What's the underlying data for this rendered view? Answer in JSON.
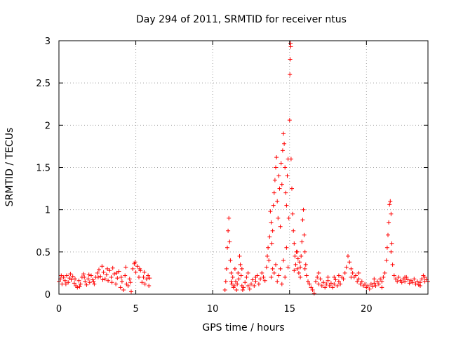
{
  "chart_data": {
    "type": "scatter",
    "title": "Day 294 of 2011, SRMTID for receiver ntus",
    "xlabel": "GPS time / hours",
    "ylabel": "SRMTID / TECUs",
    "xlim": [
      0,
      24
    ],
    "ylim": [
      0,
      3
    ],
    "xticks": [
      0,
      5,
      10,
      15,
      20
    ],
    "xtick_labels": [
      "0",
      "5",
      "10",
      "15",
      "20"
    ],
    "yticks": [
      0,
      0.5,
      1,
      1.5,
      2,
      2.5,
      3
    ],
    "ytick_labels": [
      "0",
      "0.5",
      "1",
      "1.5",
      "2",
      "2.5",
      "3"
    ],
    "grid": true,
    "marker": "+",
    "series": [
      {
        "name": "SRMTID",
        "color": "#ff0000",
        "points": [
          [
            0.0,
            0.15
          ],
          [
            0.1,
            0.18
          ],
          [
            0.2,
            0.12
          ],
          [
            0.3,
            0.2
          ],
          [
            0.4,
            0.16
          ],
          [
            0.5,
            0.22
          ],
          [
            0.6,
            0.14
          ],
          [
            0.7,
            0.19
          ],
          [
            0.8,
            0.17
          ],
          [
            0.9,
            0.21
          ],
          [
            1.0,
            0.13
          ],
          [
            1.1,
            0.1
          ],
          [
            1.2,
            0.08
          ],
          [
            1.3,
            0.16
          ],
          [
            1.4,
            0.12
          ],
          [
            1.5,
            0.2
          ],
          [
            1.6,
            0.24
          ],
          [
            1.7,
            0.15
          ],
          [
            1.8,
            0.11
          ],
          [
            1.9,
            0.18
          ],
          [
            2.0,
            0.14
          ],
          [
            2.1,
            0.22
          ],
          [
            2.2,
            0.17
          ],
          [
            2.3,
            0.12
          ],
          [
            2.4,
            0.2
          ],
          [
            2.5,
            0.25
          ],
          [
            2.6,
            0.29
          ],
          [
            2.7,
            0.21
          ],
          [
            2.8,
            0.33
          ],
          [
            2.9,
            0.26
          ],
          [
            3.0,
            0.18
          ],
          [
            3.1,
            0.23
          ],
          [
            3.2,
            0.16
          ],
          [
            3.3,
            0.28
          ],
          [
            3.4,
            0.2
          ],
          [
            3.5,
            0.31
          ],
          [
            3.6,
            0.24
          ],
          [
            3.7,
            0.12
          ],
          [
            3.8,
            0.19
          ],
          [
            3.9,
            0.27
          ],
          [
            4.0,
            0.08
          ],
          [
            4.1,
            0.15
          ],
          [
            4.2,
            0.05
          ],
          [
            4.3,
            0.22
          ],
          [
            4.4,
            0.12
          ],
          [
            4.5,
            0.1
          ],
          [
            4.6,
            0.18
          ],
          [
            4.7,
            0.03
          ],
          [
            4.8,
            0.3
          ],
          [
            4.9,
            0.36
          ],
          [
            5.0,
            0.26
          ],
          [
            5.1,
            0.33
          ],
          [
            5.2,
            0.2
          ],
          [
            5.3,
            0.28
          ],
          [
            5.4,
            0.14
          ],
          [
            5.5,
            0.2
          ],
          [
            5.6,
            0.12
          ],
          [
            5.7,
            0.18
          ],
          [
            5.8,
            0.22
          ],
          [
            5.9,
            0.19
          ],
          [
            0.15,
            0.22
          ],
          [
            0.45,
            0.12
          ],
          [
            0.75,
            0.24
          ],
          [
            1.05,
            0.18
          ],
          [
            1.35,
            0.09
          ],
          [
            1.65,
            0.2
          ],
          [
            1.95,
            0.23
          ],
          [
            2.25,
            0.15
          ],
          [
            2.55,
            0.2
          ],
          [
            2.85,
            0.17
          ],
          [
            3.15,
            0.3
          ],
          [
            3.45,
            0.14
          ],
          [
            3.75,
            0.25
          ],
          [
            4.05,
            0.2
          ],
          [
            4.35,
            0.32
          ],
          [
            4.65,
            0.14
          ],
          [
            4.95,
            0.38
          ],
          [
            5.25,
            0.3
          ],
          [
            5.55,
            0.26
          ],
          [
            5.85,
            0.1
          ],
          [
            10.8,
            0.05
          ],
          [
            10.85,
            0.15
          ],
          [
            10.9,
            0.3
          ],
          [
            10.95,
            0.55
          ],
          [
            11.0,
            0.75
          ],
          [
            11.05,
            0.9
          ],
          [
            11.1,
            0.62
          ],
          [
            11.15,
            0.4
          ],
          [
            11.2,
            0.25
          ],
          [
            11.25,
            0.12
          ],
          [
            11.3,
            0.2
          ],
          [
            11.35,
            0.08
          ],
          [
            11.4,
            0.1
          ],
          [
            11.45,
            0.3
          ],
          [
            11.5,
            0.15
          ],
          [
            11.55,
            0.05
          ],
          [
            11.6,
            0.12
          ],
          [
            11.65,
            0.25
          ],
          [
            11.7,
            0.18
          ],
          [
            11.75,
            0.45
          ],
          [
            11.8,
            0.35
          ],
          [
            11.85,
            0.22
          ],
          [
            11.9,
            0.1
          ],
          [
            11.95,
            0.05
          ],
          [
            12.0,
            0.08
          ],
          [
            12.1,
            0.14
          ],
          [
            12.2,
            0.2
          ],
          [
            12.3,
            0.1
          ],
          [
            12.4,
            0.06
          ],
          [
            12.5,
            0.12
          ],
          [
            12.6,
            0.17
          ],
          [
            12.7,
            0.1
          ],
          [
            12.8,
            0.15
          ],
          [
            12.9,
            0.22
          ],
          [
            13.0,
            0.12
          ],
          [
            13.1,
            0.18
          ],
          [
            13.2,
            0.25
          ],
          [
            13.3,
            0.2
          ],
          [
            13.4,
            0.16
          ],
          [
            13.5,
            0.32
          ],
          [
            13.55,
            0.45
          ],
          [
            13.6,
            0.55
          ],
          [
            13.65,
            0.4
          ],
          [
            13.7,
            0.68
          ],
          [
            13.75,
            0.98
          ],
          [
            13.8,
            0.85
          ],
          [
            13.85,
            0.6
          ],
          [
            13.9,
            0.75
          ],
          [
            13.95,
            1.05
          ],
          [
            14.0,
            1.2
          ],
          [
            14.05,
            1.35
          ],
          [
            14.1,
            1.5
          ],
          [
            14.15,
            1.62
          ],
          [
            14.2,
            1.1
          ],
          [
            14.25,
            0.9
          ],
          [
            14.3,
            1.4
          ],
          [
            14.35,
            1.25
          ],
          [
            14.4,
            0.8
          ],
          [
            14.45,
            1.55
          ],
          [
            14.5,
            1.3
          ],
          [
            14.55,
            1.7
          ],
          [
            14.6,
            1.9
          ],
          [
            14.65,
            1.78
          ],
          [
            14.7,
            1.5
          ],
          [
            14.75,
            1.2
          ],
          [
            14.8,
            1.05
          ],
          [
            14.85,
            1.4
          ],
          [
            14.9,
            1.6
          ],
          [
            14.95,
            0.9
          ],
          [
            15.0,
            2.06
          ],
          [
            15.02,
            2.6
          ],
          [
            15.04,
            2.78
          ],
          [
            15.06,
            2.97
          ],
          [
            15.08,
            2.93
          ],
          [
            15.1,
            1.6
          ],
          [
            15.15,
            1.25
          ],
          [
            15.2,
            0.95
          ],
          [
            15.25,
            0.75
          ],
          [
            15.3,
            0.6
          ],
          [
            15.35,
            0.45
          ],
          [
            15.4,
            0.35
          ],
          [
            15.45,
            0.5
          ],
          [
            15.5,
            0.3
          ],
          [
            15.55,
            0.42
          ],
          [
            15.6,
            0.25
          ],
          [
            15.65,
            0.38
          ],
          [
            15.7,
            0.2
          ],
          [
            15.75,
            0.45
          ],
          [
            15.8,
            0.62
          ],
          [
            15.85,
            0.88
          ],
          [
            15.9,
            1.0
          ],
          [
            15.95,
            0.7
          ],
          [
            16.0,
            0.5
          ],
          [
            16.05,
            0.35
          ],
          [
            16.1,
            0.22
          ],
          [
            16.2,
            0.15
          ],
          [
            16.3,
            0.12
          ],
          [
            16.4,
            0.08
          ],
          [
            16.5,
            0.05
          ],
          [
            16.6,
            0.01
          ],
          [
            14.0,
            0.25
          ],
          [
            14.1,
            0.35
          ],
          [
            14.2,
            0.15
          ],
          [
            14.3,
            0.22
          ],
          [
            14.4,
            0.3
          ],
          [
            14.5,
            0.12
          ],
          [
            14.6,
            0.4
          ],
          [
            14.7,
            0.2
          ],
          [
            14.8,
            0.55
          ],
          [
            14.9,
            0.32
          ],
          [
            13.8,
            0.2
          ],
          [
            13.9,
            0.3
          ],
          [
            15.3,
            0.28
          ],
          [
            15.5,
            0.5
          ],
          [
            15.7,
            0.32
          ],
          [
            16.0,
            0.3
          ],
          [
            12.3,
            0.25
          ],
          [
            12.8,
            0.2
          ],
          [
            11.9,
            0.3
          ],
          [
            11.2,
            0.15
          ],
          [
            16.7,
            0.15
          ],
          [
            16.8,
            0.2
          ],
          [
            16.9,
            0.12
          ],
          [
            17.0,
            0.18
          ],
          [
            17.1,
            0.1
          ],
          [
            17.2,
            0.14
          ],
          [
            17.3,
            0.08
          ],
          [
            17.4,
            0.12
          ],
          [
            17.5,
            0.16
          ],
          [
            17.6,
            0.1
          ],
          [
            17.7,
            0.13
          ],
          [
            17.8,
            0.08
          ],
          [
            17.9,
            0.12
          ],
          [
            18.0,
            0.17
          ],
          [
            18.1,
            0.1
          ],
          [
            18.2,
            0.15
          ],
          [
            18.3,
            0.12
          ],
          [
            18.4,
            0.2
          ],
          [
            18.5,
            0.18
          ],
          [
            18.6,
            0.25
          ],
          [
            18.7,
            0.32
          ],
          [
            18.8,
            0.45
          ],
          [
            18.9,
            0.38
          ],
          [
            19.0,
            0.3
          ],
          [
            19.1,
            0.25
          ],
          [
            19.2,
            0.2
          ],
          [
            19.3,
            0.22
          ],
          [
            19.4,
            0.15
          ],
          [
            19.5,
            0.18
          ],
          [
            19.6,
            0.12
          ],
          [
            19.7,
            0.15
          ],
          [
            19.8,
            0.1
          ],
          [
            19.9,
            0.12
          ],
          [
            20.0,
            0.08
          ],
          [
            20.1,
            0.1
          ],
          [
            20.2,
            0.06
          ],
          [
            20.3,
            0.12
          ],
          [
            20.4,
            0.09
          ],
          [
            20.5,
            0.13
          ],
          [
            20.6,
            0.1
          ],
          [
            20.7,
            0.15
          ],
          [
            20.8,
            0.12
          ],
          [
            20.9,
            0.18
          ],
          [
            21.0,
            0.15
          ],
          [
            21.1,
            0.2
          ],
          [
            21.2,
            0.25
          ],
          [
            21.3,
            0.4
          ],
          [
            21.35,
            0.55
          ],
          [
            21.4,
            0.7
          ],
          [
            21.45,
            0.85
          ],
          [
            21.5,
            1.06
          ],
          [
            21.55,
            1.1
          ],
          [
            21.6,
            0.95
          ],
          [
            21.65,
            0.6
          ],
          [
            21.7,
            0.35
          ],
          [
            21.8,
            0.22
          ],
          [
            21.9,
            0.18
          ],
          [
            22.0,
            0.15
          ],
          [
            22.1,
            0.2
          ],
          [
            22.2,
            0.16
          ],
          [
            22.3,
            0.14
          ],
          [
            22.4,
            0.18
          ],
          [
            22.5,
            0.15
          ],
          [
            22.6,
            0.2
          ],
          [
            22.7,
            0.17
          ],
          [
            22.8,
            0.13
          ],
          [
            22.9,
            0.16
          ],
          [
            23.0,
            0.14
          ],
          [
            23.1,
            0.18
          ],
          [
            23.2,
            0.12
          ],
          [
            23.3,
            0.15
          ],
          [
            23.4,
            0.11
          ],
          [
            23.5,
            0.14
          ],
          [
            23.6,
            0.18
          ],
          [
            23.7,
            0.22
          ],
          [
            23.8,
            0.2
          ],
          [
            23.9,
            0.17
          ],
          [
            24.0,
            0.15
          ],
          [
            17.5,
            0.2
          ],
          [
            18.2,
            0.22
          ],
          [
            19.0,
            0.2
          ],
          [
            19.5,
            0.25
          ],
          [
            20.5,
            0.18
          ],
          [
            21.0,
            0.08
          ],
          [
            21.6,
            0.5
          ],
          [
            22.5,
            0.2
          ],
          [
            23.5,
            0.1
          ],
          [
            23.8,
            0.15
          ],
          [
            16.9,
            0.25
          ],
          [
            17.9,
            0.2
          ]
        ]
      }
    ]
  }
}
